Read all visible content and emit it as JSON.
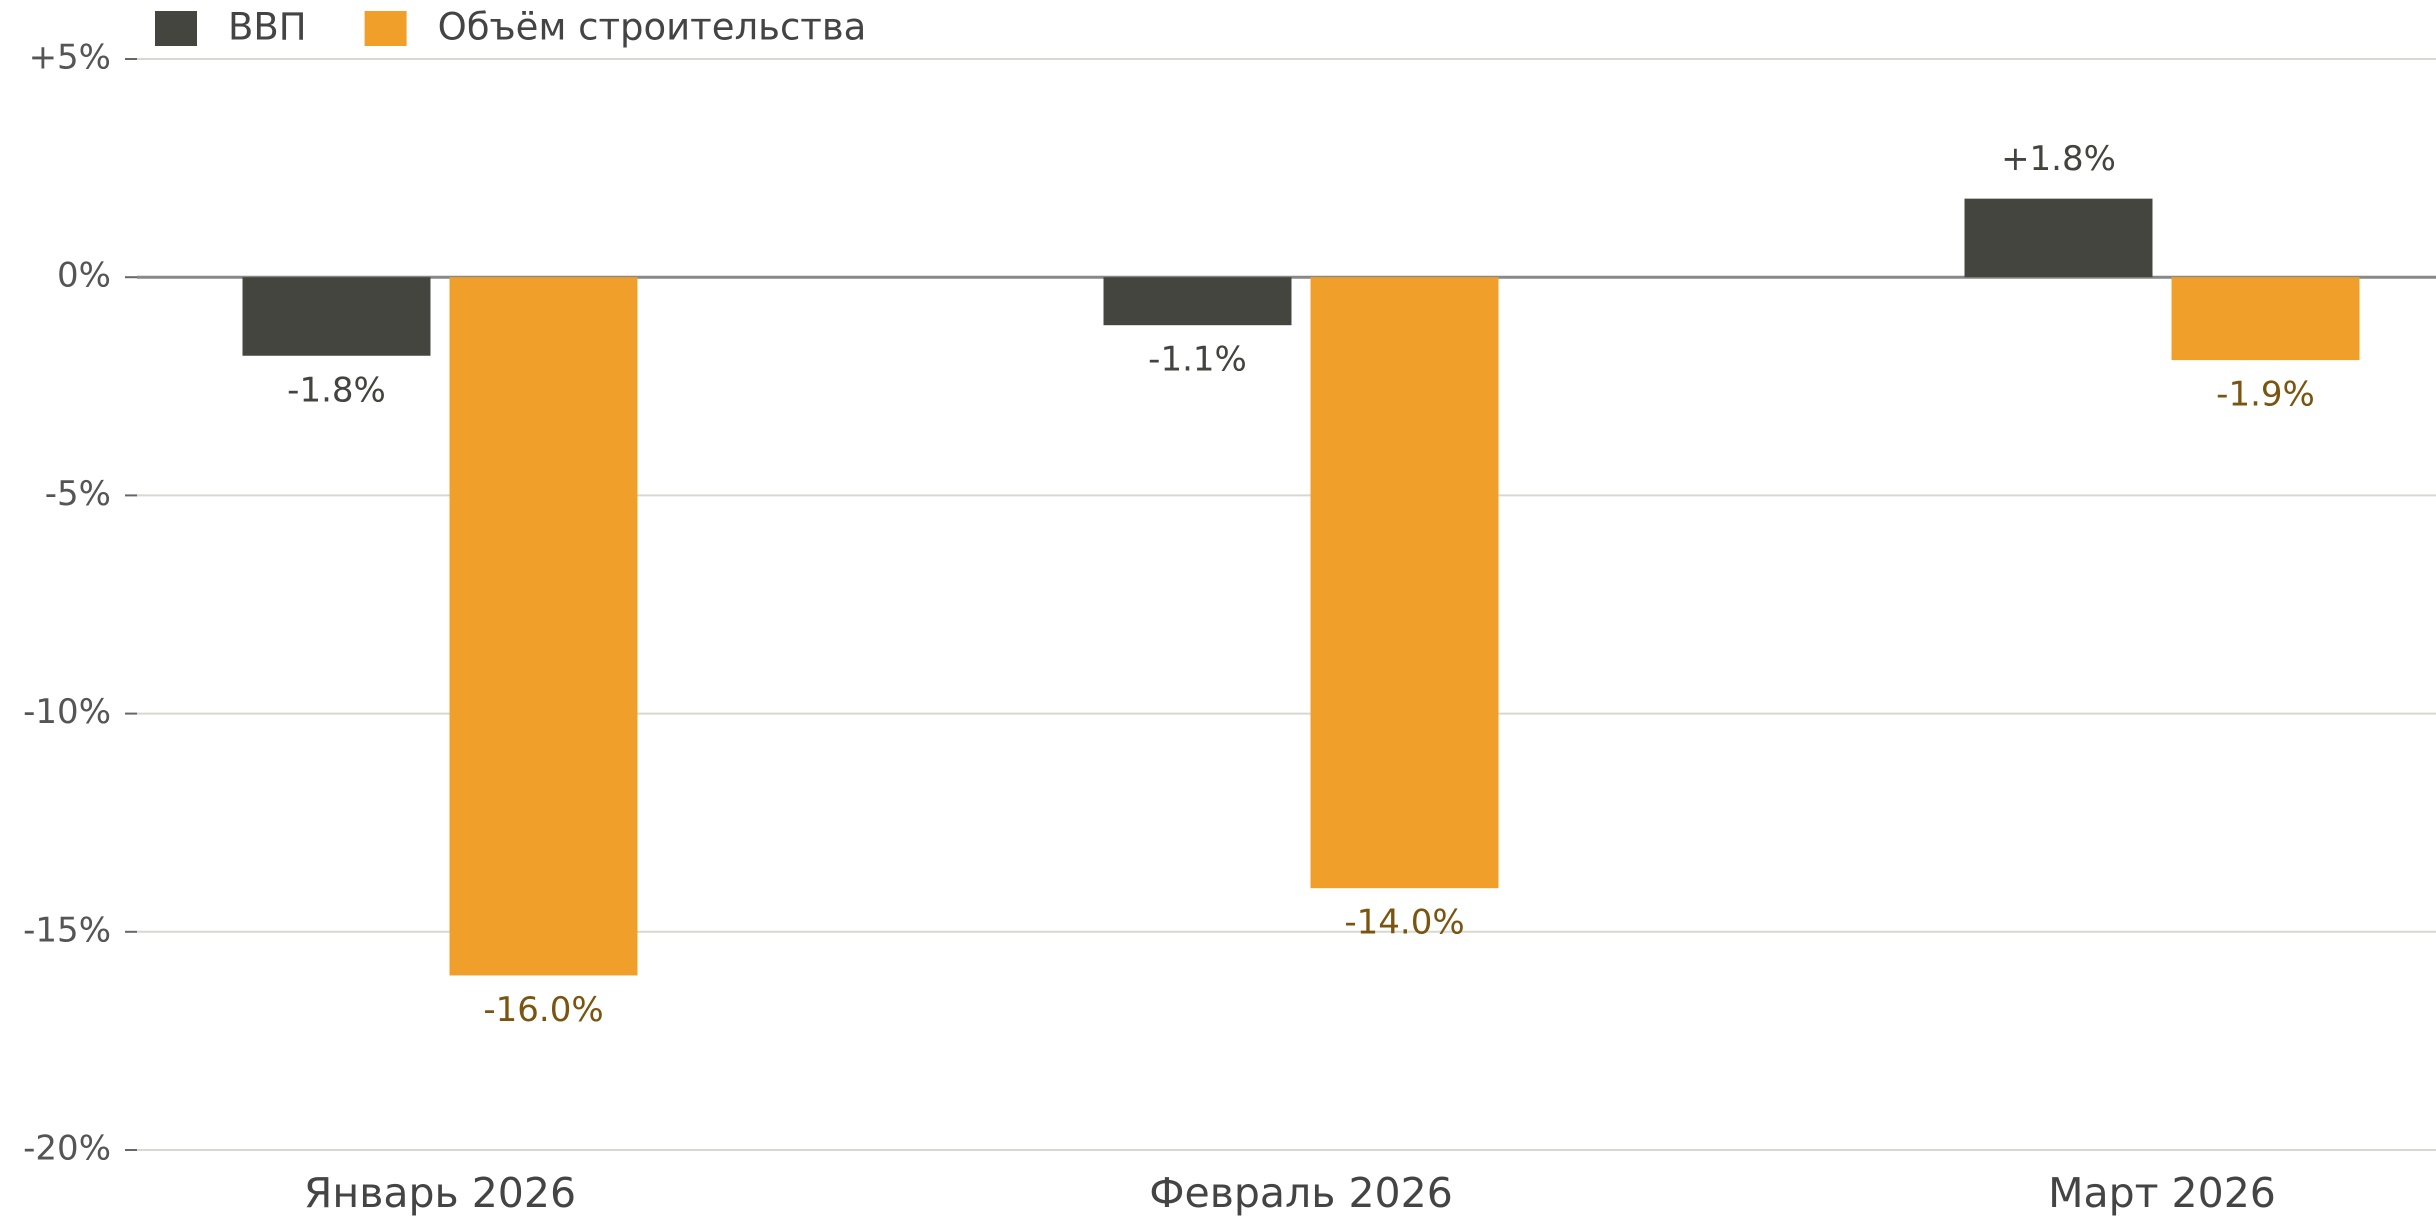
{
  "chart_data": {
    "type": "bar",
    "categories": [
      "Январь 2026",
      "Февраль 2026",
      "Март 2026"
    ],
    "series": [
      {
        "name": "ВВП",
        "color": "#454540",
        "label_color": "#44443f",
        "values": [
          -1.8,
          -1.1,
          1.8
        ],
        "value_labels": [
          "-1.8%",
          "-1.1%",
          "+1.8%"
        ]
      },
      {
        "name": "Объём строительства",
        "color": "#f0a02a",
        "label_color": "#7a5510",
        "values": [
          -16,
          -14,
          -1.9
        ],
        "value_labels": [
          "-16.0%",
          "-14.0%",
          "-1.9%"
        ]
      }
    ],
    "ylim": [
      -20,
      5
    ],
    "yticks": [
      {
        "value": 5,
        "label": "+5%"
      },
      {
        "value": 0,
        "label": "0%"
      },
      {
        "value": -5,
        "label": "-5%"
      },
      {
        "value": -10,
        "label": "-10%"
      },
      {
        "value": -15,
        "label": "-15%"
      },
      {
        "value": -20,
        "label": "-20%"
      }
    ],
    "grid": true,
    "legend": "top-left"
  }
}
